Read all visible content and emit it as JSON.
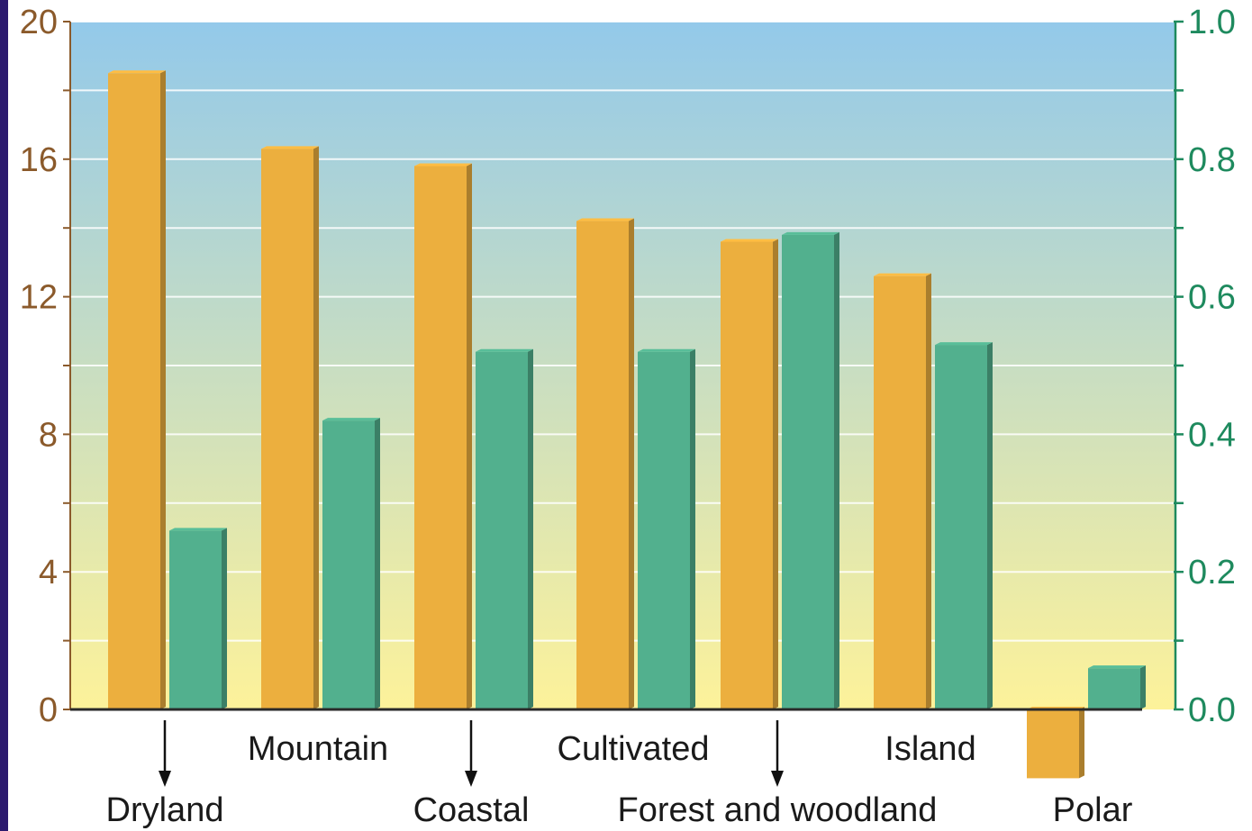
{
  "chart_data": {
    "type": "bar",
    "title": "",
    "xlabel": "",
    "categories": [
      "Dryland",
      "Mountain",
      "Coastal",
      "Cultivated",
      "Forest and woodland",
      "Island",
      "Polar"
    ],
    "series": [
      {
        "axis": "left",
        "color": "#ecaf3e",
        "values": [
          18.5,
          16.3,
          15.8,
          14.2,
          13.6,
          12.6,
          -2.0
        ]
      },
      {
        "axis": "right",
        "color": "#52b08e",
        "values": [
          0.26,
          0.42,
          0.52,
          0.52,
          0.69,
          0.53,
          0.06
        ]
      }
    ],
    "y_left": {
      "lim": [
        0,
        20
      ],
      "ticks": [
        "0",
        "4",
        "8",
        "12",
        "16",
        "20"
      ],
      "color": "#8b5a2b"
    },
    "y_right": {
      "lim": [
        0,
        1.0
      ],
      "ticks": [
        "0.0",
        "0.2",
        "0.4",
        "0.6",
        "0.8",
        "1.0"
      ],
      "color": "#1e8a5e"
    },
    "category_label_rows": [
      "lower",
      "upper",
      "lower",
      "upper",
      "lower",
      "upper",
      "lower"
    ],
    "category_arrows": [
      true,
      false,
      true,
      false,
      true,
      false,
      false
    ],
    "grid": true,
    "background_gradient": [
      "#93c9ea",
      "#fdf29a"
    ],
    "frame_color": "#2c1a6e"
  }
}
